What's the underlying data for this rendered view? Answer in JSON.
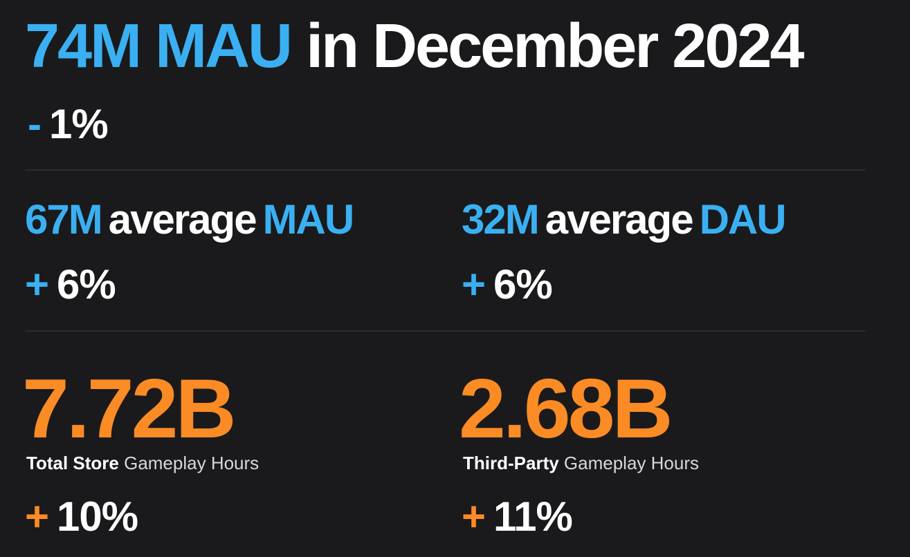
{
  "headline": {
    "value": "74M MAU",
    "text": "in December 2024",
    "change_sign": "-",
    "change_value": "1%"
  },
  "metrics": [
    {
      "value": "67M",
      "middle": "average",
      "label": "MAU",
      "change_sign": "+",
      "change_value": "6%"
    },
    {
      "value": "32M",
      "middle": "average",
      "label": "DAU",
      "change_sign": "+",
      "change_value": "6%"
    }
  ],
  "hours": [
    {
      "value": "7.72B",
      "caption_bold": "Total Store",
      "caption_light": "Gameplay Hours",
      "change_sign": "+",
      "change_value": "10%"
    },
    {
      "value": "2.68B",
      "caption_bold": "Third-Party",
      "caption_light": "Gameplay Hours",
      "change_sign": "+",
      "change_value": "11%"
    }
  ],
  "colors": {
    "background": "#1a1a1c",
    "blue_accent": "#3ab0f2",
    "orange_accent": "#fb8b24",
    "divider": "#2d2d31"
  }
}
